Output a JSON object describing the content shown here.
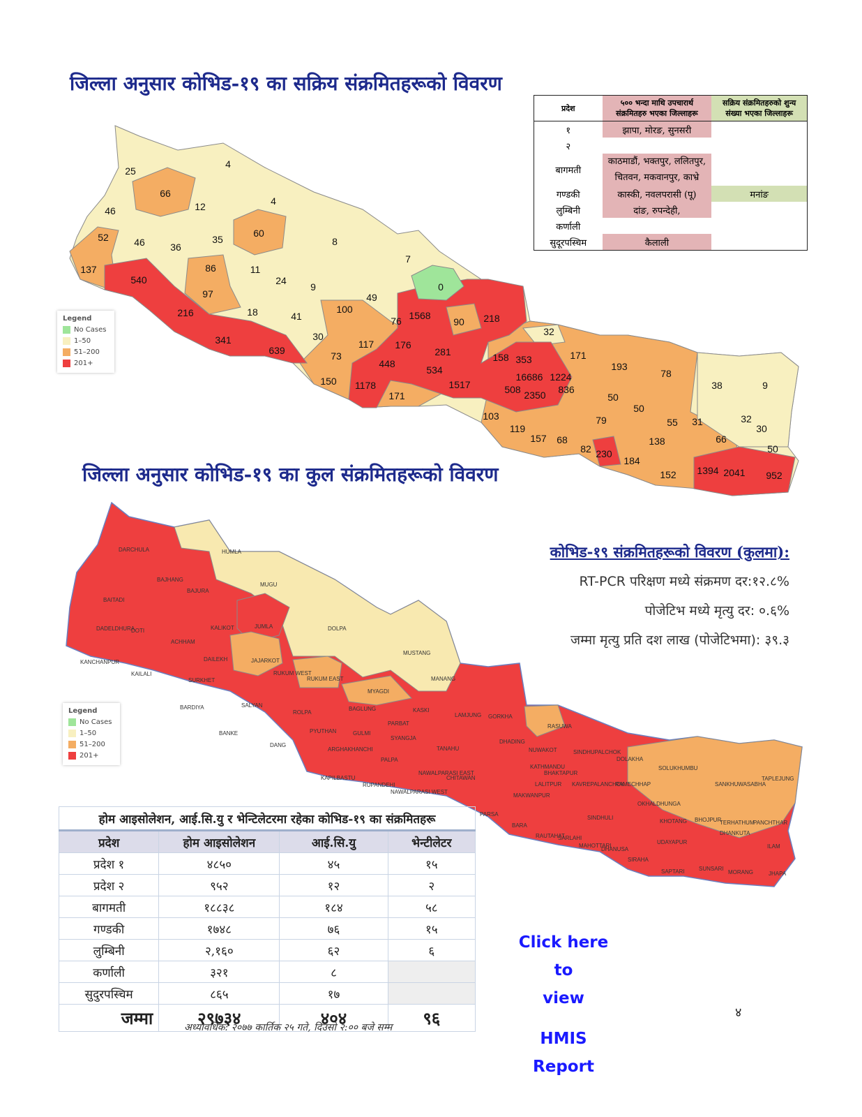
{
  "active_map": {
    "title": "जिल्ला अनुसार कोभिड-१९ का सक्रिय संक्रमितहरूको विवरण",
    "district_values": [
      "25",
      "4",
      "66",
      "12",
      "4",
      "46",
      "60",
      "52",
      "46",
      "36",
      "35",
      "8",
      "7",
      "137",
      "540",
      "86",
      "11",
      "24",
      "9",
      "0",
      "97",
      "49",
      "100",
      "216",
      "18",
      "41",
      "1568",
      "90",
      "218",
      "76",
      "30",
      "32",
      "341",
      "639",
      "117",
      "176",
      "281",
      "73",
      "171",
      "158",
      "353",
      "193",
      "448",
      "534",
      "78",
      "16686",
      "1224",
      "38",
      "9",
      "150",
      "1178",
      "1517",
      "508",
      "2350",
      "836",
      "171",
      "50",
      "50",
      "79",
      "55",
      "31",
      "32",
      "30",
      "103",
      "119",
      "157",
      "68",
      "138",
      "66",
      "50",
      "82",
      "230",
      "184",
      "152",
      "1394",
      "2041",
      "952"
    ]
  },
  "legend": {
    "title": "Legend",
    "items": [
      {
        "label": "No Cases",
        "color": "#9fe59a"
      },
      {
        "label": "1–50",
        "color": "#f8f0c0"
      },
      {
        "label": "51–200",
        "color": "#f4ad63"
      },
      {
        "label": "201+",
        "color": "#ee3f3f"
      }
    ]
  },
  "summary_table": {
    "headers": [
      "प्रदेश",
      "५०० भन्दा माथि उपचारार्थ संक्रमितहरु भएका जिल्लाहरू",
      "सक्रिय संक्रमितहरुको शुन्य संख्या भएका जिल्लाहरू"
    ],
    "rows": [
      [
        "१",
        "झापा, मोरङ, सुनसरी",
        ""
      ],
      [
        "२",
        "",
        ""
      ],
      [
        "बागमती",
        "काठमाडौं, भक्तपुर, ललितपुर, चितवन, मकवानपुर, काभ्रे",
        ""
      ],
      [
        "गण्डकी",
        "कास्की, नवलपरासी (पू)",
        "मनांङ"
      ],
      [
        "लुम्बिनी",
        "दांङ, रुपन्देही,",
        ""
      ],
      [
        "कर्णाली",
        "",
        ""
      ],
      [
        "सुदूरपस्चिम",
        "कैलाली",
        ""
      ]
    ]
  },
  "total_map": {
    "title": "जिल्ला अनुसार कोभिड-१९ का कुल संक्रमितहरूको विवरण",
    "district_names": [
      "DARCHULA",
      "HUMLA",
      "BAJHANG",
      "MUGU",
      "BAJURA",
      "BAITADI",
      "DADELDHURA",
      "DOTI",
      "KALIKOT",
      "JUMLA",
      "DOLPA",
      "ACHHAM",
      "KANCHANPUR",
      "DAILEKH",
      "JAJARKOT",
      "KAILALI",
      "SURKHET",
      "RUKUM WEST",
      "RUKUM EAST",
      "MUSTANG",
      "MANANG",
      "MYAGDI",
      "BARDIYA",
      "SALYAN",
      "ROLPA",
      "BAGLUNG",
      "KASKI",
      "LAMJUNG",
      "GORKHA",
      "PARBAT",
      "BANKE",
      "PYUTHAN",
      "GULMI",
      "SYANGJA",
      "DANG",
      "ARGHAKHANCHI",
      "TANAHU",
      "RASUWA",
      "DHADING",
      "NUWAKOT",
      "SINDHUPALCHOK",
      "DOLAKHA",
      "PALPA",
      "KAPILBASTU",
      "RUPANDEHI",
      "NAWALPARASI WEST",
      "NAWALPARASI EAST",
      "CHITAWAN",
      "KATHMANDU",
      "BHAKTAPUR",
      "LALITPUR",
      "KAVREPALANCHOK",
      "RAMECHHAP",
      "SOLUKHUMBU",
      "SANKHUWASABHA",
      "TAPLEJUNG",
      "MAKWANPUR",
      "OKHALDHUNGA",
      "PARSA",
      "BARA",
      "RAUTAHAT",
      "SARLAHI",
      "SINDHULI",
      "MAHOTTARI",
      "DHANUSA",
      "KHOTANG",
      "BHOJPUR",
      "TERHATHUM",
      "PANCHTHAR",
      "DHANKUTA",
      "UDAYAPUR",
      "SIRAHA",
      "ILAM",
      "SAPTARI",
      "SUNSARI",
      "MORANG",
      "JHAPA"
    ]
  },
  "stats": {
    "heading": "कोभिड-१९ संक्रमितहरूको विवरण (कुलमा):",
    "lines": [
      "RT-PCR परिक्षण मध्ये संक्रमण दर:१२.८%",
      "पोजेटिभ मध्ये मृत्यु दर: ०.६%",
      "जम्मा मृत्यु प्रति दश लाख (पोजेटिभमा): ३९.३"
    ]
  },
  "isolation_table": {
    "caption": "होम आइसोलेशन, आई.सि.यु र भेन्टिलेटरमा रहेका कोभिड-१९ का संक्रमितहरू",
    "headers": [
      "प्रदेश",
      "होम आइसोलेशन",
      "आई.सि.यु",
      "भेन्टीलेटर"
    ],
    "rows": [
      [
        "प्रदेश १",
        "४८५०",
        "४५",
        "१५"
      ],
      [
        "प्रदेश २",
        "९५२",
        "१२",
        "२"
      ],
      [
        "बागमती",
        "१८८३८",
        "१८४",
        "५८"
      ],
      [
        "गण्डकी",
        "१७४८",
        "७६",
        "१५"
      ],
      [
        "लुम्बिनी",
        "२,१६०",
        "६२",
        "६"
      ],
      [
        "कर्णाली",
        "३२१",
        "८",
        ""
      ],
      [
        "सुदुरपस्चिम",
        "८६५",
        "१७",
        ""
      ]
    ],
    "total": [
      "जम्मा",
      "२९७३४",
      "४०४",
      "९६"
    ]
  },
  "footnote": "अध्यावधिक: २०७७ कार्तिक २५ गते, दिउसो २:०० बजे सम्म",
  "hmis_link": {
    "line1": "Click here to",
    "line2": "view",
    "line3": "HMIS Report"
  },
  "page_number": "४"
}
